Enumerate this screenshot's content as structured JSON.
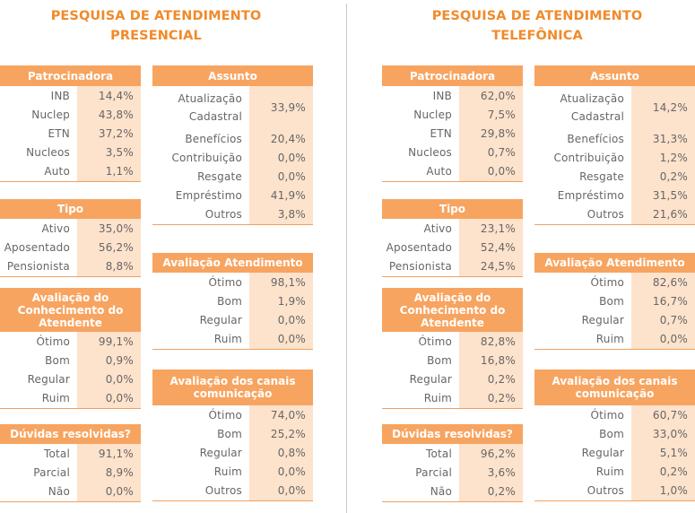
{
  "left": {
    "title_line1": "PESQUISA DE ATENDIMENTO",
    "title_line2": "PRESENCIAL",
    "patrocinadora": {
      "header": "Patrocinadora",
      "rows": [
        {
          "label": "INB",
          "value": "14,4%"
        },
        {
          "label": "Nuclep",
          "value": "43,8%"
        },
        {
          "label": "ETN",
          "value": "37,2%"
        },
        {
          "label": "Nucleos",
          "value": "3,5%"
        },
        {
          "label": "Auto",
          "value": "1,1%"
        }
      ]
    },
    "tipo": {
      "header": "Tipo",
      "rows": [
        {
          "label": "Ativo",
          "value": "35,0%"
        },
        {
          "label": "Aposentado",
          "value": "56,2%"
        },
        {
          "label": "Pensionista",
          "value": "8,8%"
        }
      ]
    },
    "conhecimento": {
      "header": "Avaliação do Conhecimento do Atendente",
      "rows": [
        {
          "label": "Ótimo",
          "value": "99,1%"
        },
        {
          "label": "Bom",
          "value": "0,9%"
        },
        {
          "label": "Regular",
          "value": "0,0%"
        },
        {
          "label": "Ruim",
          "value": "0,0%"
        }
      ]
    },
    "duvidas": {
      "header": "Dúvidas resolvidas?",
      "rows": [
        {
          "label": "Total",
          "value": "91,1%"
        },
        {
          "label": "Parcial",
          "value": "8,9%"
        },
        {
          "label": "Não",
          "value": "0,0%"
        }
      ]
    },
    "assunto": {
      "header": "Assunto",
      "first_label_line1": "Atualização",
      "first_label_line2": "Cadastral",
      "first_value": "33,9%",
      "rows": [
        {
          "label": "Benefícios",
          "value": "20,4%"
        },
        {
          "label": "Contribuição",
          "value": "0,0%"
        },
        {
          "label": "Resgate",
          "value": "0,0%"
        },
        {
          "label": "Empréstimo",
          "value": "41,9%"
        },
        {
          "label": "Outros",
          "value": "3,8%"
        }
      ]
    },
    "atendimento": {
      "header": "Avaliação Atendimento",
      "rows": [
        {
          "label": "Ótimo",
          "value": "98,1%"
        },
        {
          "label": "Bom",
          "value": "1,9%"
        },
        {
          "label": "Regular",
          "value": "0,0%"
        },
        {
          "label": "Ruim",
          "value": "0,0%"
        }
      ]
    },
    "canais": {
      "header": "Avaliação dos canais comunicação",
      "rows": [
        {
          "label": "Ótimo",
          "value": "74,0%"
        },
        {
          "label": "Bom",
          "value": "25,2%"
        },
        {
          "label": "Regular",
          "value": "0,8%"
        },
        {
          "label": "Ruim",
          "value": "0,0%"
        },
        {
          "label": "Outros",
          "value": "0,0%"
        }
      ]
    }
  },
  "right": {
    "title_line1": "PESQUISA DE ATENDIMENTO",
    "title_line2": "TELEFÔNICA",
    "patrocinadora": {
      "header": "Patrocinadora",
      "rows": [
        {
          "label": "INB",
          "value": "62,0%"
        },
        {
          "label": "Nuclep",
          "value": "7,5%"
        },
        {
          "label": "ETN",
          "value": "29,8%"
        },
        {
          "label": "Nucleos",
          "value": "0,7%"
        },
        {
          "label": "Auto",
          "value": "0,0%"
        }
      ]
    },
    "tipo": {
      "header": "Tipo",
      "rows": [
        {
          "label": "Ativo",
          "value": "23,1%"
        },
        {
          "label": "Aposentado",
          "value": "52,4%"
        },
        {
          "label": "Pensionista",
          "value": "24,5%"
        }
      ]
    },
    "conhecimento": {
      "header": "Avaliação do Conhecimento do Atendente",
      "rows": [
        {
          "label": "Ótimo",
          "value": "82,8%"
        },
        {
          "label": "Bom",
          "value": "16,8%"
        },
        {
          "label": "Regular",
          "value": "0,2%"
        },
        {
          "label": "Ruim",
          "value": "0,2%"
        }
      ]
    },
    "duvidas": {
      "header": "Dúvidas resolvidas?",
      "rows": [
        {
          "label": "Total",
          "value": "96,2%"
        },
        {
          "label": "Parcial",
          "value": "3,6%"
        },
        {
          "label": "Não",
          "value": "0,2%"
        }
      ]
    },
    "assunto": {
      "header": "Assunto",
      "first_label_line1": "Atualização",
      "first_label_line2": "Cadastral",
      "first_value": "14,2%",
      "rows": [
        {
          "label": "Benefícios",
          "value": "31,3%"
        },
        {
          "label": "Contribuição",
          "value": "1,2%"
        },
        {
          "label": "Resgate",
          "value": "0,2%"
        },
        {
          "label": "Empréstimo",
          "value": "31,5%"
        },
        {
          "label": "Outros",
          "value": "21,6%"
        }
      ]
    },
    "atendimento": {
      "header": "Avaliação Atendimento",
      "rows": [
        {
          "label": "Ótimo",
          "value": "82,6%"
        },
        {
          "label": "Bom",
          "value": "16,7%"
        },
        {
          "label": "Regular",
          "value": "0,7%"
        },
        {
          "label": "Ruim",
          "value": "0,0%"
        }
      ]
    },
    "canais": {
      "header": "Avaliação dos canais comunicação",
      "rows": [
        {
          "label": "Ótimo",
          "value": "60,7%"
        },
        {
          "label": "Bom",
          "value": "33,0%"
        },
        {
          "label": "Regular",
          "value": "5,1%"
        },
        {
          "label": "Ruim",
          "value": "0,2%"
        },
        {
          "label": "Outros",
          "value": "1,0%"
        }
      ]
    }
  }
}
